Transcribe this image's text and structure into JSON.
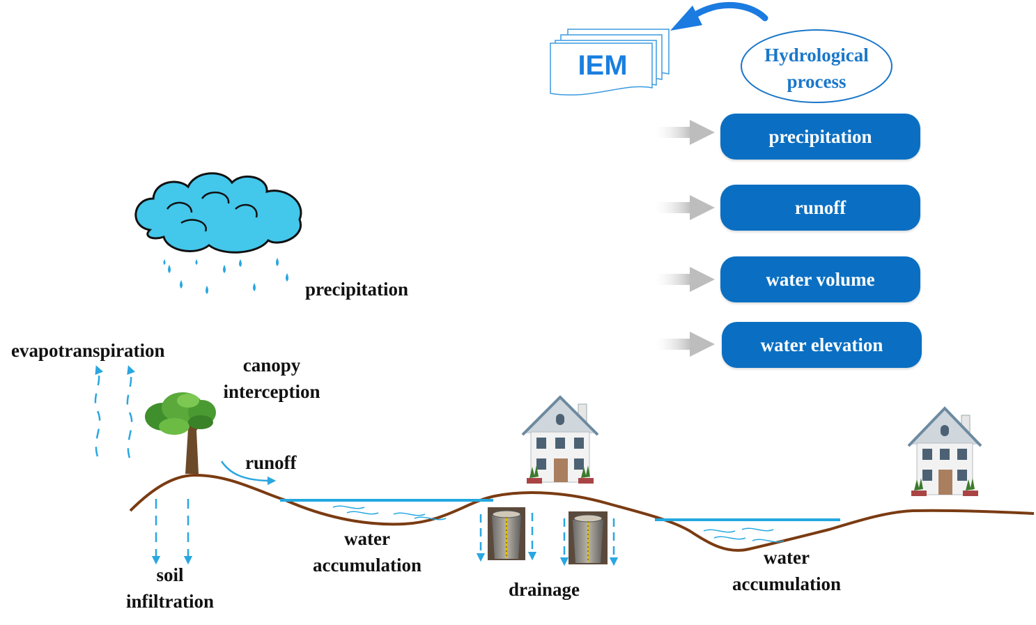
{
  "labels": {
    "precipitation": "precipitation",
    "evapotranspiration": "evapotranspiration",
    "canopy_line1": "canopy",
    "canopy_line2": "interception",
    "runoff": "runoff",
    "soil_line1": "soil",
    "soil_line2": "infiltration",
    "water_acc1_line1": "water",
    "water_acc1_line2": "accumulation",
    "drainage": "drainage",
    "water_acc2_line1": "water",
    "water_acc2_line2": "accumulation"
  },
  "model": {
    "name": "IEM",
    "process_line1": "Hydrological",
    "process_line2": "process"
  },
  "outputs": [
    {
      "label": "precipitation"
    },
    {
      "label": "runoff"
    },
    {
      "label": "water volume"
    },
    {
      "label": "water elevation"
    }
  ],
  "colors": {
    "accent_blue": "#0a6fc2",
    "ground": "#7a3b12",
    "water": "#23a8e0",
    "cloud": "#43c7eb",
    "rain": "#2aa6e0"
  },
  "icons": [
    "cloud-icon",
    "tree-icon",
    "house-icon",
    "manhole-icon",
    "document-stack-icon"
  ]
}
